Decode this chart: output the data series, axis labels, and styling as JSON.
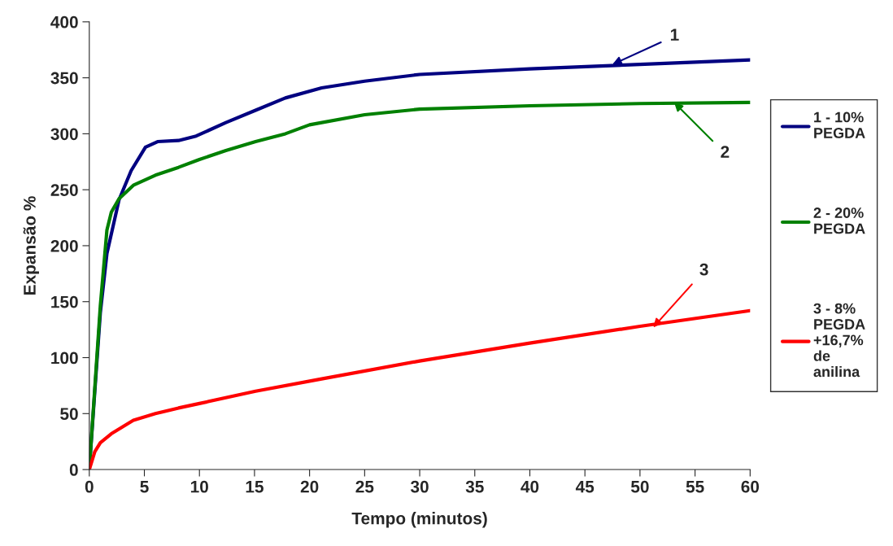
{
  "chart_data": {
    "type": "line",
    "xlabel": "Tempo (minutos)",
    "ylabel": "Expansão %",
    "xlim": [
      0,
      60
    ],
    "xticks": [
      0,
      5,
      10,
      15,
      20,
      25,
      30,
      35,
      40,
      45,
      50,
      55,
      60
    ],
    "ylim": [
      0,
      400
    ],
    "yticks": [
      0,
      50,
      100,
      150,
      200,
      250,
      300,
      350,
      400
    ],
    "grid": false,
    "legend": "right",
    "marker": "none",
    "line_style": "solid",
    "series": [
      {
        "name": "1 - 10% PEGDA",
        "color": "#000080",
        "x": [
          0,
          1,
          1.6,
          2.7,
          3.8,
          5.1,
          6.2,
          8.1,
          9.7,
          12.4,
          15.1,
          17.8,
          21.1,
          25,
          30,
          40,
          50,
          60
        ],
        "values": [
          0,
          140,
          193,
          241,
          267,
          288,
          293,
          294,
          298,
          310,
          321,
          332,
          341,
          347,
          353,
          358,
          362,
          366
        ]
      },
      {
        "name": "2 - 20% PEGDA",
        "color": "#008000",
        "x": [
          0,
          1,
          1.6,
          2,
          2.7,
          4,
          6,
          8.1,
          10,
          12.4,
          15.1,
          17.8,
          20,
          25,
          30,
          40,
          50,
          60
        ],
        "values": [
          0,
          146,
          214,
          230,
          242,
          254,
          263,
          270,
          277,
          285,
          293,
          300,
          308,
          317,
          322,
          325,
          327,
          328
        ]
      },
      {
        "name": "3 - 8% PEGDA +16,7% de anilina",
        "color": "#ff0000",
        "x": [
          0,
          0.5,
          1,
          2,
          3,
          4,
          6,
          8.1,
          10,
          15.1,
          21.1,
          30,
          40,
          50,
          60
        ],
        "values": [
          0,
          16,
          24,
          32,
          38,
          44,
          50,
          55,
          59,
          70,
          81,
          97,
          113,
          128,
          142
        ]
      }
    ],
    "annotations": [
      {
        "text": "1",
        "x": 47.5,
        "y": 362
      },
      {
        "text": "2",
        "x": 53.1,
        "y": 328
      },
      {
        "text": "3",
        "x": 51.2,
        "y": 127
      }
    ]
  }
}
